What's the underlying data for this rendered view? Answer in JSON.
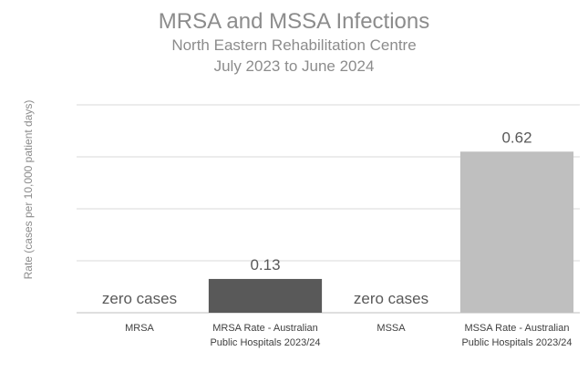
{
  "chart_data": {
    "type": "bar",
    "title": "MRSA and MSSA Infections",
    "subtitle_lines": [
      "North Eastern Rehabilitation Centre",
      "July 2023 to June 2024"
    ],
    "ylabel": "Rate (cases  per 10,000 patient days)",
    "xlabel": "",
    "ylim": [
      0,
      0.8
    ],
    "grid": true,
    "categories": [
      [
        "MRSA"
      ],
      [
        "MRSA Rate - Australian",
        "Public Hospitals 2023/24"
      ],
      [
        "MSSA"
      ],
      [
        "MSSA Rate - Australian",
        "Public Hospitals 2023/24"
      ]
    ],
    "values": [
      0,
      0.13,
      0,
      0.62
    ],
    "data_labels": [
      "zero cases",
      "0.13",
      "zero cases",
      "0.62"
    ],
    "colors": [
      "#595959",
      "#595959",
      "#bfbfbf",
      "#bfbfbf"
    ]
  }
}
